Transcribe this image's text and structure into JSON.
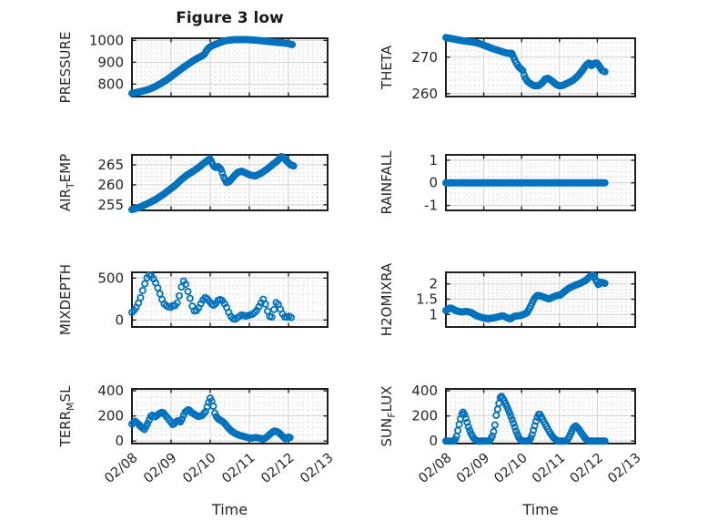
{
  "figure": {
    "title": "Figure 3 low",
    "xlabel": "Time",
    "x_ticks": [
      "02/08",
      "02/09",
      "02/10",
      "02/11",
      "02/12",
      "02/13"
    ],
    "x_range_days": [
      0,
      5
    ],
    "minor_x_per_day": 8,
    "marker_color": "#0072BD",
    "colors": {
      "axis": "#1f1f1f",
      "major_grid": "#d2d2d2",
      "minor_grid": "#c9c9c9",
      "text": "#262626",
      "background": "#ffffff"
    }
  },
  "chart_data": [
    {
      "id": "pressure",
      "type": "scatter",
      "ylabel": "PRESSURE",
      "ylabel_parts": [
        {
          "t": "PRESSURE"
        }
      ],
      "yticks": [
        800,
        900,
        1000
      ],
      "ytick_labels": [
        "800",
        "900",
        "1000"
      ],
      "ylim": [
        743,
        1010
      ],
      "minor_y_div": 5,
      "dt": 0.035,
      "keypoints": [
        [
          0,
          758
        ],
        [
          0.15,
          763
        ],
        [
          0.3,
          769
        ],
        [
          0.45,
          777
        ],
        [
          0.6,
          789
        ],
        [
          0.75,
          804
        ],
        [
          0.9,
          821
        ],
        [
          1.05,
          841
        ],
        [
          1.2,
          861
        ],
        [
          1.35,
          881
        ],
        [
          1.5,
          899
        ],
        [
          1.6,
          911
        ],
        [
          1.7,
          921
        ],
        [
          1.78,
          928
        ],
        [
          1.85,
          936
        ],
        [
          1.9,
          952
        ],
        [
          1.95,
          964
        ],
        [
          2.05,
          976
        ],
        [
          2.15,
          983
        ],
        [
          2.25,
          990
        ],
        [
          2.35,
          997
        ],
        [
          2.5,
          1002
        ],
        [
          2.7,
          1004
        ],
        [
          2.9,
          1004
        ],
        [
          3.1,
          1002
        ],
        [
          3.3,
          999
        ],
        [
          3.5,
          995
        ],
        [
          3.7,
          991
        ],
        [
          3.85,
          989
        ],
        [
          3.95,
          987
        ],
        [
          4.12,
          980
        ]
      ]
    },
    {
      "id": "theta",
      "type": "scatter",
      "ylabel": "THETA",
      "ylabel_parts": [
        {
          "t": "THETA"
        }
      ],
      "yticks": [
        260,
        270
      ],
      "ytick_labels": [
        "260",
        "270"
      ],
      "ylim": [
        259.2,
        275.2
      ],
      "minor_y_div": 5,
      "dt": 0.035,
      "keypoints": [
        [
          0,
          275.4
        ],
        [
          0.2,
          275.0
        ],
        [
          0.4,
          274.6
        ],
        [
          0.6,
          274.3
        ],
        [
          0.8,
          274.0
        ],
        [
          0.95,
          273.5
        ],
        [
          1.1,
          272.9
        ],
        [
          1.25,
          272.3
        ],
        [
          1.4,
          271.8
        ],
        [
          1.55,
          271.3
        ],
        [
          1.68,
          271.0
        ],
        [
          1.74,
          271.2
        ],
        [
          1.8,
          269.6
        ],
        [
          1.86,
          268.4
        ],
        [
          1.92,
          267.4
        ],
        [
          1.98,
          266.8
        ],
        [
          2.03,
          266.3
        ],
        [
          2.08,
          264.6
        ],
        [
          2.15,
          263.4
        ],
        [
          2.25,
          262.6
        ],
        [
          2.35,
          262.1
        ],
        [
          2.45,
          262.2
        ],
        [
          2.55,
          263.0
        ],
        [
          2.62,
          264.0
        ],
        [
          2.7,
          264.2
        ],
        [
          2.8,
          263.5
        ],
        [
          2.9,
          262.6
        ],
        [
          3.0,
          262.1
        ],
        [
          3.1,
          262.3
        ],
        [
          3.2,
          262.8
        ],
        [
          3.35,
          263.6
        ],
        [
          3.5,
          265.0
        ],
        [
          3.6,
          266.3
        ],
        [
          3.7,
          267.8
        ],
        [
          3.78,
          268.4
        ],
        [
          3.85,
          267.7
        ],
        [
          3.92,
          268.3
        ],
        [
          3.98,
          268.5
        ],
        [
          4.05,
          267.6
        ],
        [
          4.12,
          266.4
        ],
        [
          4.2,
          266.0
        ]
      ]
    },
    {
      "id": "airtemp",
      "type": "scatter",
      "ylabel": "AIR_TEMP",
      "ylabel_parts": [
        {
          "t": "AIR"
        },
        {
          "t": "T",
          "sub": true
        },
        {
          "t": "EMP"
        }
      ],
      "yticks": [
        255,
        260,
        265
      ],
      "ytick_labels": [
        "255",
        "260",
        "265"
      ],
      "ylim": [
        253.6,
        267.5
      ],
      "minor_y_div": 5,
      "dt": 0.035,
      "keypoints": [
        [
          0,
          253.8
        ],
        [
          0.2,
          254.4
        ],
        [
          0.4,
          255.3
        ],
        [
          0.6,
          256.3
        ],
        [
          0.8,
          257.6
        ],
        [
          0.95,
          258.7
        ],
        [
          1.1,
          259.8
        ],
        [
          1.25,
          261.2
        ],
        [
          1.4,
          262.4
        ],
        [
          1.55,
          263.3
        ],
        [
          1.7,
          264.3
        ],
        [
          1.85,
          265.5
        ],
        [
          1.95,
          266.2
        ],
        [
          2.0,
          266.5
        ],
        [
          2.06,
          265.2
        ],
        [
          2.12,
          264.3
        ],
        [
          2.2,
          264.6
        ],
        [
          2.28,
          263.8
        ],
        [
          2.35,
          261.8
        ],
        [
          2.42,
          260.5
        ],
        [
          2.5,
          260.9
        ],
        [
          2.6,
          262.1
        ],
        [
          2.7,
          263.1
        ],
        [
          2.8,
          263.4
        ],
        [
          2.9,
          263.0
        ],
        [
          3.0,
          262.5
        ],
        [
          3.15,
          262.2
        ],
        [
          3.3,
          262.9
        ],
        [
          3.45,
          263.9
        ],
        [
          3.6,
          265.1
        ],
        [
          3.72,
          266.0
        ],
        [
          3.82,
          267.1
        ],
        [
          3.88,
          266.8
        ],
        [
          3.95,
          266.0
        ],
        [
          4.05,
          265.0
        ],
        [
          4.14,
          264.7
        ]
      ]
    },
    {
      "id": "rainfall",
      "type": "scatter",
      "ylabel": "RAINFALL",
      "ylabel_parts": [
        {
          "t": "RAINFALL"
        }
      ],
      "yticks": [
        -1,
        0,
        1
      ],
      "ytick_labels": [
        "-1",
        "0",
        "1"
      ],
      "ylim": [
        -1.22,
        1.24
      ],
      "minor_y_div": 4,
      "dt": 0.03,
      "keypoints": [
        [
          0,
          0
        ],
        [
          4.2,
          0
        ]
      ]
    },
    {
      "id": "mixdepth",
      "type": "scatter",
      "ylabel": "MIXDEPTH",
      "ylabel_parts": [
        {
          "t": "MIXDEPTH"
        }
      ],
      "yticks": [
        0,
        500
      ],
      "ytick_labels": [
        "0",
        "500"
      ],
      "ylim": [
        -83,
        568
      ],
      "minor_y_div": 5,
      "dt": 0.055,
      "keypoints": [
        [
          0,
          90
        ],
        [
          0.1,
          140
        ],
        [
          0.2,
          235
        ],
        [
          0.3,
          390
        ],
        [
          0.38,
          500
        ],
        [
          0.45,
          545
        ],
        [
          0.52,
          515
        ],
        [
          0.6,
          450
        ],
        [
          0.68,
          360
        ],
        [
          0.75,
          265
        ],
        [
          0.82,
          195
        ],
        [
          0.9,
          160
        ],
        [
          1.0,
          150
        ],
        [
          1.07,
          185
        ],
        [
          1.12,
          160
        ],
        [
          1.18,
          235
        ],
        [
          1.25,
          360
        ],
        [
          1.3,
          470
        ],
        [
          1.36,
          450
        ],
        [
          1.43,
          340
        ],
        [
          1.5,
          235
        ],
        [
          1.56,
          130
        ],
        [
          1.62,
          95
        ],
        [
          1.7,
          140
        ],
        [
          1.8,
          230
        ],
        [
          1.88,
          272
        ],
        [
          1.95,
          240
        ],
        [
          2.02,
          195
        ],
        [
          2.08,
          172
        ],
        [
          2.15,
          200
        ],
        [
          2.22,
          248
        ],
        [
          2.3,
          238
        ],
        [
          2.36,
          198
        ],
        [
          2.42,
          150
        ],
        [
          2.48,
          85
        ],
        [
          2.55,
          25
        ],
        [
          2.62,
          5
        ],
        [
          2.7,
          28
        ],
        [
          2.8,
          62
        ],
        [
          2.9,
          45
        ],
        [
          3.0,
          58
        ],
        [
          3.1,
          72
        ],
        [
          3.2,
          120
        ],
        [
          3.3,
          205
        ],
        [
          3.37,
          258
        ],
        [
          3.44,
          140
        ],
        [
          3.5,
          60
        ],
        [
          3.56,
          10
        ],
        [
          3.63,
          125
        ],
        [
          3.69,
          215
        ],
        [
          3.75,
          180
        ],
        [
          3.81,
          110
        ],
        [
          3.87,
          55
        ],
        [
          3.93,
          22
        ],
        [
          4.0,
          48
        ],
        [
          4.07,
          30
        ]
      ]
    },
    {
      "id": "h2omixra",
      "type": "scatter",
      "ylabel": "H2OMIXRA",
      "ylabel_parts": [
        {
          "t": "H2OMIXRA"
        }
      ],
      "yticks": [
        1,
        1.5,
        2
      ],
      "ytick_labels": [
        "1",
        "1.5",
        "2"
      ],
      "ylim": [
        0.59,
        2.38
      ],
      "minor_y_div": 5,
      "dt": 0.035,
      "keypoints": [
        [
          0,
          1.13
        ],
        [
          0.12,
          1.22
        ],
        [
          0.25,
          1.13
        ],
        [
          0.4,
          1.08
        ],
        [
          0.55,
          1.1
        ],
        [
          0.68,
          1.06
        ],
        [
          0.8,
          0.96
        ],
        [
          0.95,
          0.9
        ],
        [
          1.1,
          0.86
        ],
        [
          1.25,
          0.88
        ],
        [
          1.4,
          0.93
        ],
        [
          1.5,
          0.96
        ],
        [
          1.6,
          0.9
        ],
        [
          1.7,
          0.85
        ],
        [
          1.8,
          0.94
        ],
        [
          1.95,
          0.96
        ],
        [
          2.05,
          1.0
        ],
        [
          2.15,
          1.06
        ],
        [
          2.25,
          1.3
        ],
        [
          2.33,
          1.52
        ],
        [
          2.42,
          1.63
        ],
        [
          2.52,
          1.6
        ],
        [
          2.62,
          1.55
        ],
        [
          2.72,
          1.51
        ],
        [
          2.82,
          1.56
        ],
        [
          2.92,
          1.62
        ],
        [
          3.02,
          1.63
        ],
        [
          3.12,
          1.74
        ],
        [
          3.25,
          1.86
        ],
        [
          3.4,
          1.95
        ],
        [
          3.55,
          2.02
        ],
        [
          3.7,
          2.12
        ],
        [
          3.82,
          2.26
        ],
        [
          3.9,
          2.3
        ],
        [
          3.97,
          2.1
        ],
        [
          4.03,
          1.97
        ],
        [
          4.1,
          2.06
        ],
        [
          4.2,
          2.02
        ]
      ]
    },
    {
      "id": "terrmsl",
      "type": "scatter",
      "ylabel": "TERR_MSL",
      "ylabel_parts": [
        {
          "t": "TERR"
        },
        {
          "t": "M",
          "sub": true
        },
        {
          "t": "SL"
        }
      ],
      "yticks": [
        0,
        200,
        400
      ],
      "ytick_labels": [
        "0",
        "200",
        "400"
      ],
      "ylim": [
        -20,
        415
      ],
      "minor_y_div": 4,
      "dt": 0.04,
      "keypoints": [
        [
          0,
          135
        ],
        [
          0.08,
          158
        ],
        [
          0.15,
          140
        ],
        [
          0.25,
          108
        ],
        [
          0.32,
          92
        ],
        [
          0.42,
          152
        ],
        [
          0.5,
          212
        ],
        [
          0.58,
          188
        ],
        [
          0.68,
          215
        ],
        [
          0.78,
          232
        ],
        [
          0.88,
          196
        ],
        [
          0.98,
          158
        ],
        [
          1.05,
          128
        ],
        [
          1.15,
          162
        ],
        [
          1.25,
          152
        ],
        [
          1.35,
          228
        ],
        [
          1.45,
          252
        ],
        [
          1.52,
          228
        ],
        [
          1.6,
          212
        ],
        [
          1.7,
          194
        ],
        [
          1.8,
          205
        ],
        [
          1.88,
          235
        ],
        [
          1.94,
          290
        ],
        [
          2.0,
          342
        ],
        [
          2.06,
          305
        ],
        [
          2.12,
          222
        ],
        [
          2.18,
          182
        ],
        [
          2.25,
          168
        ],
        [
          2.35,
          148
        ],
        [
          2.45,
          108
        ],
        [
          2.55,
          78
        ],
        [
          2.65,
          58
        ],
        [
          2.75,
          45
        ],
        [
          2.85,
          38
        ],
        [
          2.95,
          28
        ],
        [
          3.05,
          22
        ],
        [
          3.15,
          28
        ],
        [
          3.25,
          24
        ],
        [
          3.35,
          14
        ],
        [
          3.45,
          32
        ],
        [
          3.55,
          62
        ],
        [
          3.65,
          82
        ],
        [
          3.75,
          68
        ],
        [
          3.85,
          38
        ],
        [
          3.92,
          18
        ],
        [
          4.0,
          32
        ],
        [
          4.07,
          24
        ]
      ]
    },
    {
      "id": "sunflux",
      "type": "scatter",
      "ylabel": "SUN_FLUX",
      "ylabel_parts": [
        {
          "t": "SUN"
        },
        {
          "t": "F",
          "sub": true
        },
        {
          "t": "LUX"
        }
      ],
      "yticks": [
        0,
        200,
        400
      ],
      "ytick_labels": [
        "0",
        "200",
        "400"
      ],
      "ylim": [
        -20,
        415
      ],
      "minor_y_div": 4,
      "dt": 0.035,
      "keypoints": [
        [
          0,
          0
        ],
        [
          0.22,
          0
        ],
        [
          0.27,
          25
        ],
        [
          0.32,
          90
        ],
        [
          0.37,
          160
        ],
        [
          0.42,
          215
        ],
        [
          0.46,
          232
        ],
        [
          0.5,
          205
        ],
        [
          0.55,
          158
        ],
        [
          0.6,
          108
        ],
        [
          0.66,
          62
        ],
        [
          0.72,
          28
        ],
        [
          0.78,
          8
        ],
        [
          0.84,
          0
        ],
        [
          1.15,
          0
        ],
        [
          1.22,
          35
        ],
        [
          1.28,
          95
        ],
        [
          1.33,
          205
        ],
        [
          1.4,
          300
        ],
        [
          1.45,
          365
        ],
        [
          1.5,
          342
        ],
        [
          1.56,
          308
        ],
        [
          1.62,
          268
        ],
        [
          1.68,
          225
        ],
        [
          1.74,
          178
        ],
        [
          1.8,
          128
        ],
        [
          1.86,
          75
        ],
        [
          1.92,
          30
        ],
        [
          1.98,
          5
        ],
        [
          2.05,
          0
        ],
        [
          2.2,
          0
        ],
        [
          2.26,
          35
        ],
        [
          2.32,
          95
        ],
        [
          2.38,
          158
        ],
        [
          2.44,
          212
        ],
        [
          2.48,
          215
        ],
        [
          2.54,
          182
        ],
        [
          2.6,
          148
        ],
        [
          2.66,
          115
        ],
        [
          2.72,
          82
        ],
        [
          2.78,
          52
        ],
        [
          2.84,
          28
        ],
        [
          2.9,
          10
        ],
        [
          2.96,
          0
        ],
        [
          3.18,
          0
        ],
        [
          3.24,
          22
        ],
        [
          3.3,
          62
        ],
        [
          3.36,
          102
        ],
        [
          3.42,
          122
        ],
        [
          3.48,
          108
        ],
        [
          3.54,
          82
        ],
        [
          3.6,
          55
        ],
        [
          3.66,
          28
        ],
        [
          3.72,
          8
        ],
        [
          3.78,
          0
        ],
        [
          4.2,
          0
        ]
      ]
    }
  ]
}
